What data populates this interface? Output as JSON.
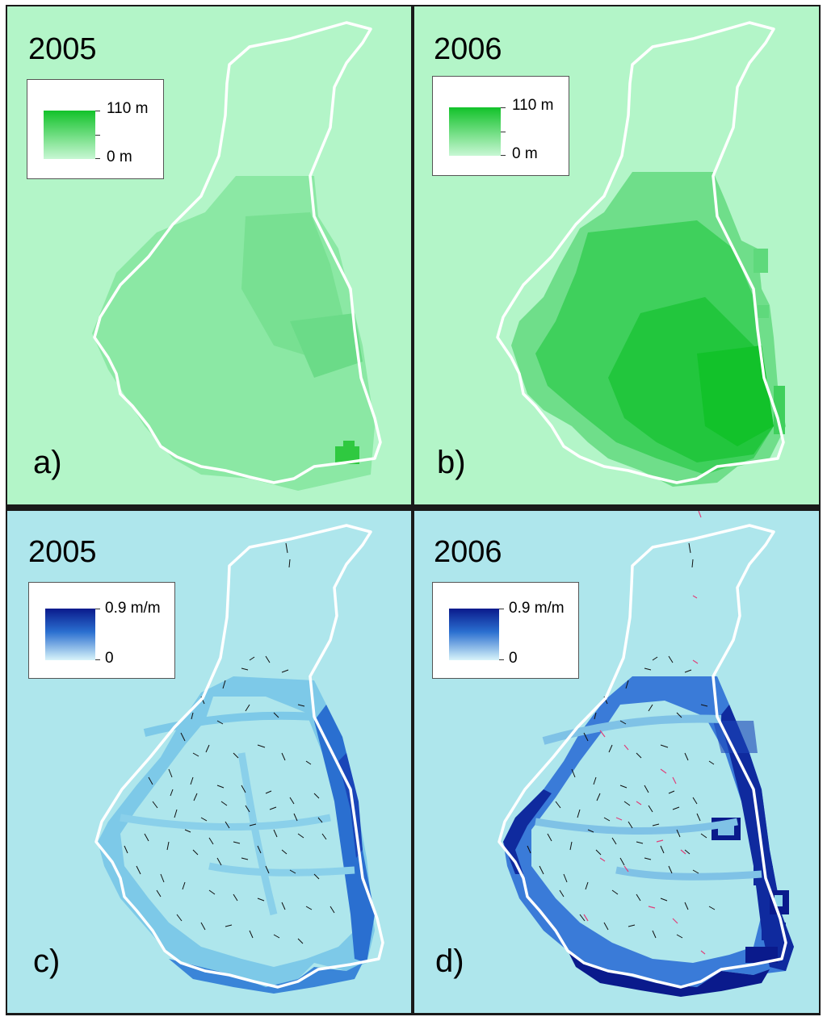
{
  "panels": [
    {
      "id": "a",
      "year": "2005",
      "letter": "a)",
      "legend_max": "110 m",
      "legend_min": "0 m"
    },
    {
      "id": "b",
      "year": "2006",
      "letter": "b)",
      "legend_max": "110 m",
      "legend_min": "0 m"
    },
    {
      "id": "c",
      "year": "2005",
      "letter": "c)",
      "legend_max": "0.9 m/m",
      "legend_min": "0"
    },
    {
      "id": "d",
      "year": "2006",
      "letter": "d)",
      "legend_max": "0.9 m/m",
      "legend_min": "0"
    }
  ],
  "colors": {
    "green_bg": "#b3f5c8",
    "green_dark": "#12c22a",
    "blue_bg": "#aee6ec",
    "blue_dark": "#0a1a8c",
    "outline": "#ffffff",
    "streak": "#111111",
    "streak_pink": "#e0407a"
  }
}
